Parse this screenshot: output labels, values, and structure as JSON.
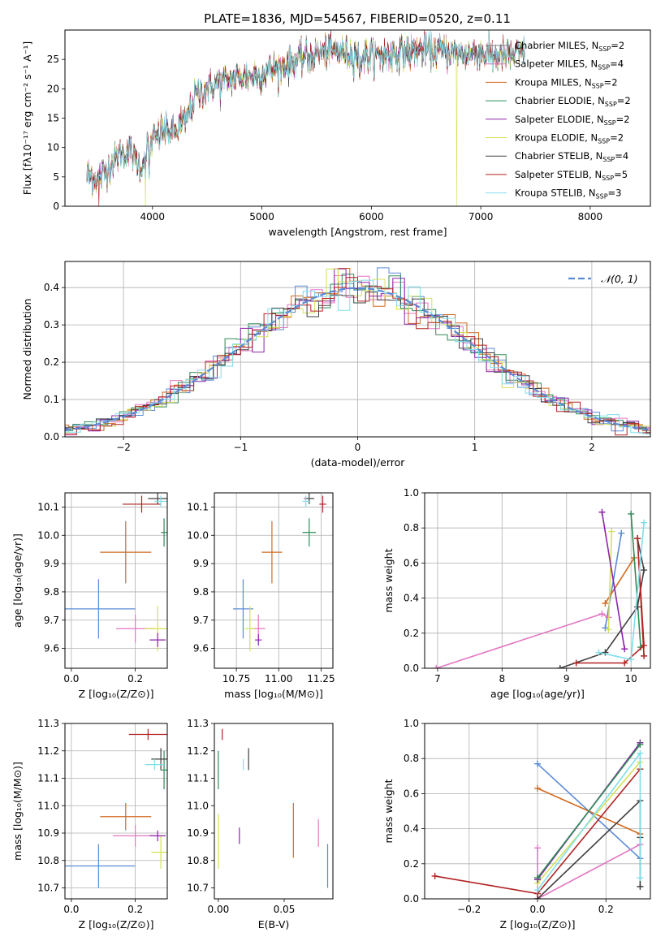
{
  "figure_title": "PLATE=1836, MJD=54567, FIBERID=0520, z=0.11",
  "models": [
    {
      "name": "Chabrier MILES",
      "nssp": "2",
      "color": "#7f7f7f"
    },
    {
      "name": "Salpeter MILES",
      "nssp": "4",
      "color": "#e377c2"
    },
    {
      "name": "Kroupa MILES",
      "nssp": "2",
      "color": "#d2691e"
    },
    {
      "name": "Chabrier ELODIE",
      "nssp": "2",
      "color": "#2e8b57"
    },
    {
      "name": "Salpeter ELODIE",
      "nssp": "2",
      "color": "#8e24aa"
    },
    {
      "name": "Kroupa ELODIE",
      "nssp": "2",
      "color": "#d4e157"
    },
    {
      "name": "Chabrier STELIB",
      "nssp": "4",
      "color": "#404040"
    },
    {
      "name": "Salpeter STELIB",
      "nssp": "5",
      "color": "#b22222"
    },
    {
      "name": "Kroupa STELIB",
      "nssp": "3",
      "color": "#80deea"
    }
  ],
  "chart_data": [
    {
      "id": "spectrum",
      "type": "line",
      "xlabel": "wavelength [Angstrom, rest frame]",
      "ylabel": "Flux [fλ10⁻¹⁷ erg cm⁻² s⁻¹ A⁻¹]",
      "xlim": [
        3200,
        8550
      ],
      "ylim": [
        0,
        30
      ],
      "xticks": [
        4000,
        5000,
        6000,
        7000,
        8000
      ],
      "yticks": [
        0,
        5,
        10,
        15,
        20,
        25
      ],
      "grid": false,
      "legend_position": "top-right",
      "continuum_x": [
        3400,
        3500,
        3600,
        3700,
        3800,
        3900,
        3950,
        4000,
        4100,
        4200,
        4300,
        4400,
        4500,
        4600,
        4800,
        5000,
        5200,
        5400,
        5600,
        5800,
        6000,
        6200,
        6400,
        6600,
        6800,
        7000,
        7200,
        7400
      ],
      "continuum_y": [
        5.5,
        4.5,
        6.5,
        9,
        9.5,
        6.5,
        10,
        11,
        13,
        12.5,
        14.5,
        19,
        20,
        21,
        22,
        22.5,
        24,
        25.5,
        26.5,
        26,
        25.5,
        26,
        26.5,
        26.5,
        26,
        26,
        25.5,
        26
      ],
      "absorption_features": [
        {
          "x": 3935,
          "y": 5
        },
        {
          "x": 3970,
          "y": 5
        },
        {
          "x": 5175,
          "y": 21
        },
        {
          "x": 5893,
          "y": 21
        }
      ],
      "spikes_to_zero": [
        {
          "x": 3510,
          "model": "Salpeter STELIB"
        },
        {
          "x": 3935,
          "model": "Kroupa ELODIE"
        },
        {
          "x": 6780,
          "model": "Kroupa ELODIE"
        },
        {
          "x": 7410,
          "model": "Salpeter STELIB"
        }
      ]
    },
    {
      "id": "residual-histogram",
      "type": "step-histogram",
      "xlabel": "(data-model)/error",
      "ylabel": "Normed distribution",
      "xlim": [
        -2.5,
        2.5
      ],
      "ylim": [
        0,
        0.47
      ],
      "xticks": [
        -2,
        -1,
        0,
        1,
        2
      ],
      "yticks": [
        0.0,
        0.1,
        0.2,
        0.3,
        0.4
      ],
      "grid": true,
      "bin_width": 0.1,
      "gaussian_label": "𝒩(0, 1)",
      "gaussian_color": "#5b8bd6",
      "legend_position": "top-right"
    },
    {
      "id": "age-vs-Z",
      "type": "errorbar",
      "xlabel": "Z [log₁₀(Z/Z⊙)]",
      "ylabel": "age  [log₁₀(age/yr)]",
      "xlim": [
        -0.02,
        0.3
      ],
      "ylim": [
        9.53,
        10.15
      ],
      "xticks": [
        0.0,
        0.2
      ],
      "yticks": [
        9.6,
        9.7,
        9.8,
        9.9,
        10.0,
        10.1
      ],
      "grid": true,
      "points": [
        {
          "color": "#5b8bd6",
          "x": 0.085,
          "xerr": 0.115,
          "y": 9.74,
          "yerr": 0.105
        },
        {
          "color": "#d2691e",
          "x": 0.17,
          "xerr": 0.08,
          "y": 9.94,
          "yerr": 0.11
        },
        {
          "color": "#e377c2",
          "x": 0.2,
          "xerr": 0.06,
          "y": 9.67,
          "yerr": 0.05
        },
        {
          "color": "#d4e157",
          "x": 0.27,
          "xerr": 0.04,
          "y": 9.67,
          "yerr": 0.08
        },
        {
          "color": "#8e24aa",
          "x": 0.27,
          "xerr": 0.025,
          "y": 9.63,
          "yerr": 0.025
        },
        {
          "color": "#2e8b57",
          "x": 0.29,
          "xerr": 0.01,
          "y": 10.01,
          "yerr": 0.05
        },
        {
          "color": "#404040",
          "x": 0.27,
          "xerr": 0.03,
          "y": 10.13,
          "yerr": 0.02
        },
        {
          "color": "#b22222",
          "x": 0.22,
          "xerr": 0.06,
          "y": 10.11,
          "yerr": 0.03
        },
        {
          "color": "#80deea",
          "x": 0.28,
          "xerr": 0.02,
          "y": 10.12,
          "yerr": 0.02
        }
      ]
    },
    {
      "id": "age-vs-mass",
      "type": "errorbar",
      "xlabel": "mass [log₁₀(M/M⊙)]",
      "ylabel": "",
      "xlim": [
        10.62,
        11.32
      ],
      "ylim": [
        9.53,
        10.15
      ],
      "xticks": [
        10.75,
        11.0,
        11.25
      ],
      "yticks": [
        9.6,
        9.7,
        9.8,
        9.9,
        10.0,
        10.1
      ],
      "grid": true,
      "points": [
        {
          "color": "#5b8bd6",
          "x": 10.79,
          "xerr": 0.06,
          "y": 9.74,
          "yerr": 0.105
        },
        {
          "color": "#d2691e",
          "x": 10.96,
          "xerr": 0.06,
          "y": 9.94,
          "yerr": 0.11
        },
        {
          "color": "#e377c2",
          "x": 10.88,
          "xerr": 0.04,
          "y": 9.67,
          "yerr": 0.05
        },
        {
          "color": "#d4e157",
          "x": 10.83,
          "xerr": 0.03,
          "y": 9.67,
          "yerr": 0.08
        },
        {
          "color": "#8e24aa",
          "x": 10.88,
          "xerr": 0.02,
          "y": 9.63,
          "yerr": 0.02
        },
        {
          "color": "#2e8b57",
          "x": 11.18,
          "xerr": 0.04,
          "y": 10.01,
          "yerr": 0.05
        },
        {
          "color": "#404040",
          "x": 11.18,
          "xerr": 0.03,
          "y": 10.13,
          "yerr": 0.02
        },
        {
          "color": "#b22222",
          "x": 11.26,
          "xerr": 0.02,
          "y": 10.11,
          "yerr": 0.03
        },
        {
          "color": "#80deea",
          "x": 11.16,
          "xerr": 0.02,
          "y": 10.12,
          "yerr": 0.02
        }
      ]
    },
    {
      "id": "mass-weight-vs-age",
      "type": "line",
      "xlabel": "age  [log₁₀(age/yr)]",
      "ylabel": "mass weight",
      "xlim": [
        6.8,
        10.3
      ],
      "ylim": [
        0.0,
        1.0
      ],
      "xticks": [
        7,
        8,
        9,
        10
      ],
      "yticks": [
        0.0,
        0.2,
        0.4,
        0.6,
        0.8,
        1.0
      ],
      "grid": true,
      "series": [
        {
          "color": "#5b8bd6",
          "x": [
            9.85,
            9.6
          ],
          "y": [
            0.77,
            0.23
          ]
        },
        {
          "color": "#d2691e",
          "x": [
            9.6,
            10.05
          ],
          "y": [
            0.37,
            0.63
          ]
        },
        {
          "color": "#e377c2",
          "x": [
            6.98,
            9.55,
            9.65
          ],
          "y": [
            0.0,
            0.31,
            0.29
          ]
        },
        {
          "color": "#d4e157",
          "x": [
            9.7,
            9.65
          ],
          "y": [
            0.78,
            0.22
          ]
        },
        {
          "color": "#8e24aa",
          "x": [
            9.55,
            9.9
          ],
          "y": [
            0.89,
            0.11
          ]
        },
        {
          "color": "#2e8b57",
          "x": [
            10.0,
            10.15
          ],
          "y": [
            0.88,
            0.12
          ]
        },
        {
          "color": "#404040",
          "x": [
            8.9,
            9.6,
            10.1,
            10.2,
            10.1
          ],
          "y": [
            0.0,
            0.09,
            0.35,
            0.56,
            0.74
          ]
        },
        {
          "color": "#b22222",
          "x": [
            9.15,
            9.9,
            10.2,
            10.1,
            10.2
          ],
          "y": [
            0.03,
            0.03,
            0.13,
            0.74,
            0.07
          ]
        },
        {
          "color": "#80deea",
          "x": [
            9.5,
            10.0,
            10.2
          ],
          "y": [
            0.09,
            0.05,
            0.83
          ]
        }
      ]
    },
    {
      "id": "mass-vs-Z",
      "type": "errorbar",
      "xlabel": "Z [log₁₀(Z/Z⊙)]",
      "ylabel": "mass [log₁₀(M/M⊙)]",
      "xlim": [
        -0.02,
        0.3
      ],
      "ylim": [
        10.66,
        11.3
      ],
      "xticks": [
        0.0,
        0.2
      ],
      "yticks": [
        10.7,
        10.8,
        10.9,
        11.0,
        11.1,
        11.2,
        11.3
      ],
      "grid": true,
      "points": [
        {
          "color": "#5b8bd6",
          "x": 0.085,
          "xerr": 0.115,
          "y": 10.78,
          "yerr": 0.08
        },
        {
          "color": "#d2691e",
          "x": 0.17,
          "xerr": 0.08,
          "y": 10.96,
          "yerr": 0.05
        },
        {
          "color": "#e377c2",
          "x": 0.2,
          "xerr": 0.07,
          "y": 10.89,
          "yerr": 0.04
        },
        {
          "color": "#d4e157",
          "x": 0.28,
          "xerr": 0.03,
          "y": 10.83,
          "yerr": 0.06
        },
        {
          "color": "#8e24aa",
          "x": 0.27,
          "xerr": 0.025,
          "y": 10.89,
          "yerr": 0.02
        },
        {
          "color": "#2e8b57",
          "x": 0.29,
          "xerr": 0.01,
          "y": 11.13,
          "yerr": 0.07
        },
        {
          "color": "#404040",
          "x": 0.28,
          "xerr": 0.03,
          "y": 11.17,
          "yerr": 0.04
        },
        {
          "color": "#b22222",
          "x": 0.24,
          "xerr": 0.06,
          "y": 11.26,
          "yerr": 0.02
        },
        {
          "color": "#80deea",
          "x": 0.26,
          "xerr": 0.03,
          "y": 11.15,
          "yerr": 0.02
        }
      ]
    },
    {
      "id": "mass-vs-EBV",
      "type": "errorbar",
      "xlabel": "E(B-V)",
      "ylabel": "",
      "xlim": [
        -0.003,
        0.087
      ],
      "ylim": [
        10.66,
        11.3
      ],
      "xticks": [
        0.0,
        0.05
      ],
      "yticks": [
        10.7,
        10.8,
        10.9,
        11.0,
        11.1,
        11.2,
        11.3
      ],
      "grid": false,
      "points": [
        {
          "color": "#5b8bd6",
          "x": 0.083,
          "xerr": 0,
          "y": 10.78,
          "yerr": 0.08
        },
        {
          "color": "#d2691e",
          "x": 0.057,
          "xerr": 0,
          "y": 10.91,
          "yerr": 0.1
        },
        {
          "color": "#e377c2",
          "x": 0.076,
          "xerr": 0,
          "y": 10.9,
          "yerr": 0.05
        },
        {
          "color": "#d4e157",
          "x": 0.0,
          "xerr": 0,
          "y": 10.87,
          "yerr": 0.1
        },
        {
          "color": "#8e24aa",
          "x": 0.016,
          "xerr": 0,
          "y": 10.89,
          "yerr": 0.03
        },
        {
          "color": "#2e8b57",
          "x": 0.0,
          "xerr": 0,
          "y": 11.13,
          "yerr": 0.07
        },
        {
          "color": "#404040",
          "x": 0.023,
          "xerr": 0,
          "y": 11.17,
          "yerr": 0.04
        },
        {
          "color": "#b22222",
          "x": 0.003,
          "xerr": 0,
          "y": 11.26,
          "yerr": 0.02
        },
        {
          "color": "#80deea",
          "x": 0.019,
          "xerr": 0,
          "y": 11.15,
          "yerr": 0.02
        }
      ]
    },
    {
      "id": "mass-weight-vs-Z",
      "type": "line",
      "xlabel": "Z [log₁₀(Z/Z⊙)]",
      "ylabel": "mass weight",
      "xlim": [
        -0.33,
        0.33
      ],
      "ylim": [
        0.0,
        1.0
      ],
      "xticks": [
        -0.2,
        0.0,
        0.2
      ],
      "yticks": [
        0.0,
        0.2,
        0.4,
        0.6,
        0.8,
        1.0
      ],
      "grid": true,
      "series": [
        {
          "color": "#5b8bd6",
          "x": [
            0.0,
            0.3
          ],
          "y": [
            0.77,
            0.23
          ]
        },
        {
          "color": "#d2691e",
          "x": [
            0.0,
            0.3
          ],
          "y": [
            0.63,
            0.37
          ]
        },
        {
          "color": "#e377c2",
          "x": [
            0.0,
            0.0,
            0.3
          ],
          "y": [
            0.29,
            0.0,
            0.31
          ]
        },
        {
          "color": "#d4e157",
          "x": [
            0.0,
            0.3
          ],
          "y": [
            0.09,
            0.78
          ]
        },
        {
          "color": "#8e24aa",
          "x": [
            0.0,
            0.3
          ],
          "y": [
            0.11,
            0.89
          ]
        },
        {
          "color": "#2e8b57",
          "x": [
            0.0,
            0.3
          ],
          "y": [
            0.12,
            0.88
          ]
        },
        {
          "color": "#404040",
          "x": [
            0.0,
            0.3,
            0.3,
            0.3
          ],
          "y": [
            0.0,
            0.56,
            0.35,
            0.07
          ]
        },
        {
          "color": "#b22222",
          "x": [
            -0.3,
            0.0,
            0.3
          ],
          "y": [
            0.13,
            0.03,
            0.74
          ]
        },
        {
          "color": "#80deea",
          "x": [
            0.0,
            0.3,
            0.3
          ],
          "y": [
            0.05,
            0.83,
            0.12
          ]
        }
      ]
    }
  ]
}
